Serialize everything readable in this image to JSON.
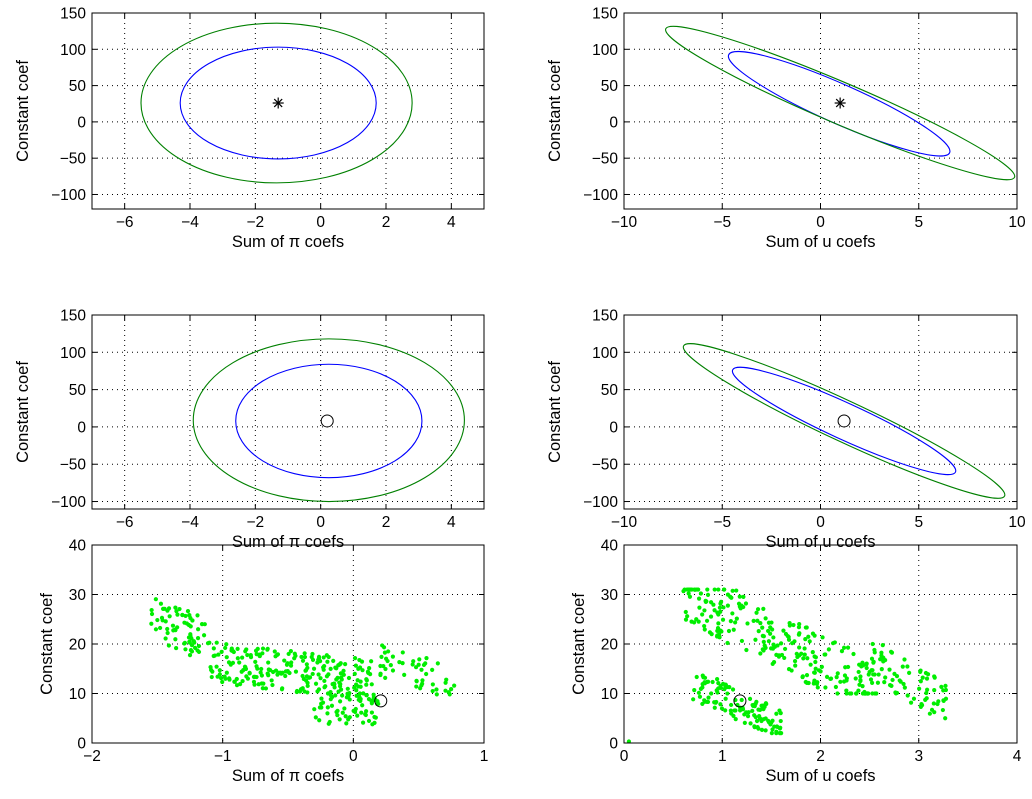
{
  "chart_data": [
    {
      "type": "contour",
      "xlabel": "Sum of π coefs",
      "ylabel": "Constant coef",
      "xlim": [
        -7,
        5
      ],
      "ylim": [
        -120,
        150
      ],
      "xticks": [
        -6,
        -4,
        -2,
        0,
        2,
        4
      ],
      "yticks": [
        -100,
        -50,
        0,
        50,
        100,
        150
      ],
      "grid": true,
      "ellipses": [
        {
          "color": "#0000ff",
          "center": [
            -1.3,
            26
          ],
          "points": [
            [
              -1.3,
              103
            ],
            [
              -1.3,
              -51
            ],
            [
              -4.3,
              26
            ],
            [
              1.7,
              26
            ]
          ]
        },
        {
          "color": "#008000",
          "center": [
            -1.3,
            26
          ],
          "points": [
            [
              -1.3,
              136
            ],
            [
              -1.3,
              -84
            ],
            [
              -5.5,
              26
            ],
            [
              2.8,
              26
            ]
          ]
        }
      ],
      "marker": {
        "shape": "star",
        "x": -1.3,
        "y": 26
      }
    },
    {
      "type": "contour",
      "xlabel": "Sum of u coefs",
      "ylabel": "Constant coef",
      "xlim": [
        -10,
        10
      ],
      "ylim": [
        -120,
        150
      ],
      "xticks": [
        -10,
        -5,
        0,
        5,
        10
      ],
      "yticks": [
        -100,
        -50,
        0,
        50,
        100,
        150
      ],
      "grid": true,
      "ellipses": [
        {
          "color": "#0000ff",
          "center": [
            1.0,
            26
          ],
          "points": [
            [
              -4.3,
              88
            ],
            [
              6.2,
              -38
            ],
            [
              -4.0,
              99
            ],
            [
              7.0,
              -50
            ]
          ]
        },
        {
          "color": "#008000",
          "center": [
            1.0,
            26
          ],
          "points": [
            [
              -7.5,
              124
            ],
            [
              9.5,
              -72
            ],
            [
              -6.8,
              132
            ],
            [
              8.5,
              -82
            ]
          ]
        }
      ],
      "marker": {
        "shape": "star",
        "x": 1.0,
        "y": 26
      }
    },
    {
      "type": "contour",
      "xlabel": "Sum of π coefs",
      "ylabel": "Constant coef",
      "xlim": [
        -7,
        5
      ],
      "ylim": [
        -110,
        150
      ],
      "xticks": [
        -6,
        -4,
        -2,
        0,
        2,
        4
      ],
      "yticks": [
        -100,
        -50,
        0,
        50,
        100,
        150
      ],
      "grid": true,
      "ellipses": [
        {
          "color": "#0000ff",
          "center": [
            0.2,
            8
          ],
          "points": [
            [
              0.2,
              84
            ],
            [
              0.2,
              -68
            ],
            [
              -2.6,
              8
            ],
            [
              3.1,
              8
            ]
          ]
        },
        {
          "color": "#008000",
          "center": [
            0.2,
            8
          ],
          "points": [
            [
              0.2,
              118
            ],
            [
              0.2,
              -100
            ],
            [
              -3.9,
              8
            ],
            [
              4.4,
              8
            ]
          ]
        }
      ],
      "marker": {
        "shape": "circle",
        "x": 0.2,
        "y": 8
      }
    },
    {
      "type": "contour",
      "xlabel": "Sum of u coefs",
      "ylabel": "Constant coef",
      "xlim": [
        -10,
        10
      ],
      "ylim": [
        -110,
        150
      ],
      "xticks": [
        -10,
        -5,
        0,
        5,
        10
      ],
      "yticks": [
        -100,
        -50,
        0,
        50,
        100,
        150
      ],
      "grid": true,
      "ellipses": [
        {
          "color": "#0000ff",
          "center": [
            1.2,
            8
          ],
          "points": [
            [
              -4.1,
              72
            ],
            [
              6.5,
              -56
            ],
            [
              -3.9,
              80
            ],
            [
              7.0,
              -63
            ]
          ]
        },
        {
          "color": "#008000",
          "center": [
            1.2,
            8
          ],
          "points": [
            [
              -6.6,
              104
            ],
            [
              9.0,
              -88
            ],
            [
              -6.0,
              112
            ],
            [
              8.3,
              -96
            ]
          ]
        }
      ],
      "marker": {
        "shape": "circle",
        "x": 1.2,
        "y": 8
      }
    },
    {
      "type": "scatter",
      "xlabel": "Sum of π coefs",
      "ylabel": "Constant coef",
      "xlim": [
        -2,
        1
      ],
      "ylim": [
        0,
        40
      ],
      "xticks": [
        -2,
        -1,
        0,
        1
      ],
      "yticks": [
        0,
        10,
        20,
        30,
        40
      ],
      "grid": true,
      "color": "#00ee00",
      "clusters": [
        {
          "x": [
            -1.55,
            -1.1
          ],
          "y": [
            15,
            31
          ],
          "n": 70,
          "slope": -12
        },
        {
          "x": [
            -1.1,
            0.15
          ],
          "y": [
            7,
            22
          ],
          "n": 230,
          "slope": -3
        },
        {
          "x": [
            -0.3,
            0.2
          ],
          "y": [
            1,
            13
          ],
          "n": 60,
          "slope": 0
        },
        {
          "x": [
            0.2,
            0.8
          ],
          "y": [
            8,
            21
          ],
          "n": 50,
          "slope": -8
        }
      ],
      "marker": {
        "shape": "circle",
        "x": 0.21,
        "y": 8.5
      }
    },
    {
      "type": "scatter",
      "xlabel": "Sum of u coefs",
      "ylabel": "Constant coef",
      "xlim": [
        0,
        4
      ],
      "ylim": [
        0,
        40
      ],
      "xticks": [
        0,
        1,
        2,
        3,
        4
      ],
      "yticks": [
        0,
        10,
        20,
        30,
        40
      ],
      "grid": true,
      "color": "#00ee00",
      "clusters": [
        {
          "x": [
            0.6,
            2.6
          ],
          "y": [
            10,
            31
          ],
          "n": 260,
          "slope": -10
        },
        {
          "x": [
            0.7,
            1.6
          ],
          "y": [
            2,
            14
          ],
          "n": 120,
          "slope": -9
        },
        {
          "x": [
            2.5,
            3.3
          ],
          "y": [
            5,
            20
          ],
          "n": 70,
          "slope": -12
        }
      ],
      "extra_points": [
        [
          0.05,
          0.3
        ]
      ],
      "marker": {
        "shape": "circle",
        "x": 1.18,
        "y": 8.5
      }
    }
  ]
}
